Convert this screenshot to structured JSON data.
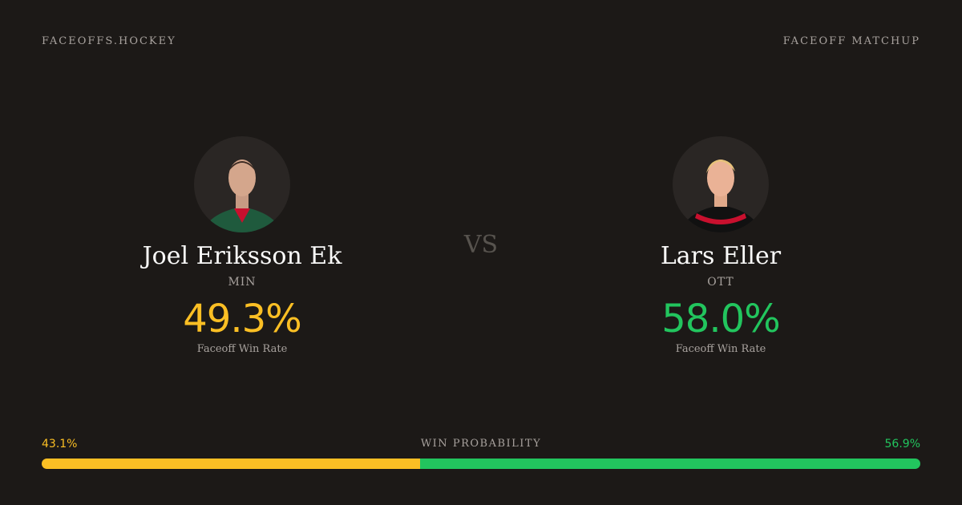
{
  "header": {
    "site": "FACEOFFS.HOCKEY",
    "tag": "FACEOFF MATCHUP"
  },
  "players": [
    {
      "name": "Joel Eriksson Ek",
      "team": "MIN",
      "rate": "49.3%",
      "rate_label": "Faceoff Win Rate",
      "color": "#fbbf24"
    },
    {
      "name": "Lars Eller",
      "team": "OTT",
      "rate": "58.0%",
      "rate_label": "Faceoff Win Rate",
      "color": "#22c55e"
    }
  ],
  "versus": "VS",
  "probability": {
    "title": "WIN PROBABILITY",
    "left": {
      "value": 43.1,
      "label": "43.1%"
    },
    "right": {
      "value": 56.9,
      "label": "56.9%"
    }
  }
}
